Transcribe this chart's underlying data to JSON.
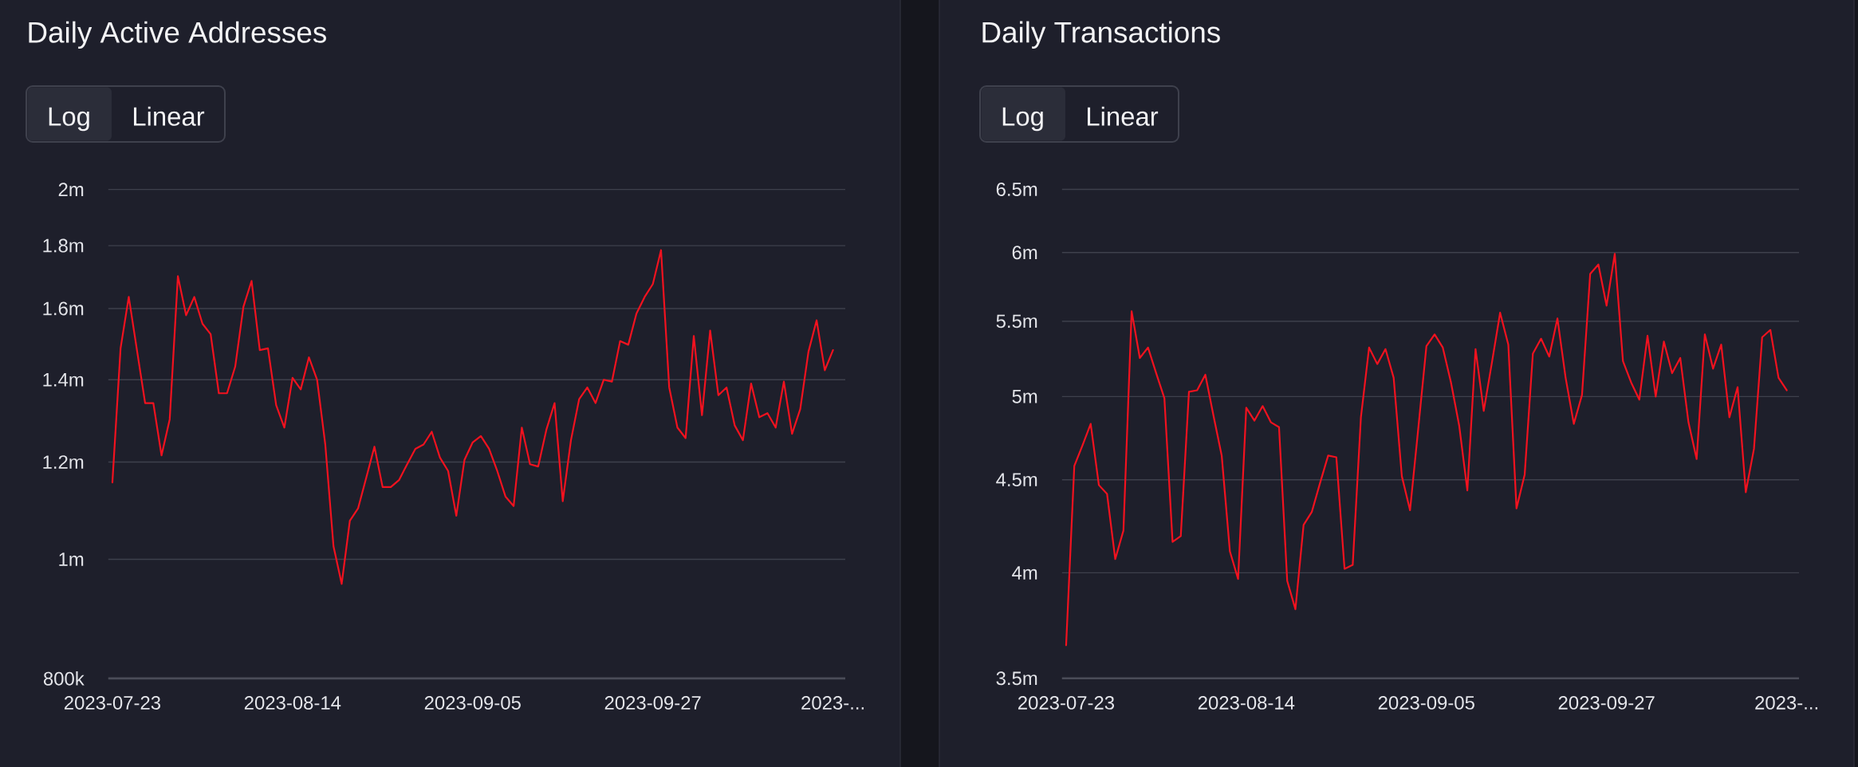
{
  "chart_data": [
    {
      "type": "line",
      "title": "Daily Active Addresses",
      "annotations": [
        "Log",
        "Linear"
      ],
      "x": [
        "2023-07-23",
        "2023-07-24",
        "2023-07-25",
        "2023-07-26",
        "2023-07-27",
        "2023-07-28",
        "2023-07-29",
        "2023-07-30",
        "2023-07-31",
        "2023-08-01",
        "2023-08-02",
        "2023-08-03",
        "2023-08-04",
        "2023-08-05",
        "2023-08-06",
        "2023-08-07",
        "2023-08-08",
        "2023-08-09",
        "2023-08-10",
        "2023-08-11",
        "2023-08-12",
        "2023-08-13",
        "2023-08-14",
        "2023-08-15",
        "2023-08-16",
        "2023-08-17",
        "2023-08-18",
        "2023-08-19",
        "2023-08-20",
        "2023-08-21",
        "2023-08-22",
        "2023-08-23",
        "2023-08-24",
        "2023-08-25",
        "2023-08-26",
        "2023-08-27",
        "2023-08-28",
        "2023-08-29",
        "2023-08-30",
        "2023-08-31",
        "2023-09-01",
        "2023-09-02",
        "2023-09-03",
        "2023-09-04",
        "2023-09-05",
        "2023-09-06",
        "2023-09-07",
        "2023-09-08",
        "2023-09-09",
        "2023-09-10",
        "2023-09-11",
        "2023-09-12",
        "2023-09-13",
        "2023-09-14",
        "2023-09-15",
        "2023-09-16",
        "2023-09-17",
        "2023-09-18",
        "2023-09-19",
        "2023-09-20",
        "2023-09-21",
        "2023-09-22",
        "2023-09-23",
        "2023-09-24",
        "2023-09-25",
        "2023-09-26",
        "2023-09-27",
        "2023-09-28",
        "2023-09-29",
        "2023-09-30",
        "2023-10-01",
        "2023-10-02",
        "2023-10-03",
        "2023-10-04",
        "2023-10-05",
        "2023-10-06",
        "2023-10-07",
        "2023-10-08",
        "2023-10-09",
        "2023-10-10",
        "2023-10-11",
        "2023-10-12",
        "2023-10-13",
        "2023-10-14",
        "2023-10-15",
        "2023-10-16",
        "2023-10-17",
        "2023-10-18",
        "2023-10-19"
      ],
      "values": [
        1155000,
        1485000,
        1635000,
        1480000,
        1340000,
        1340000,
        1215000,
        1300000,
        1700000,
        1580000,
        1635000,
        1555000,
        1525000,
        1365000,
        1365000,
        1435000,
        1605000,
        1685000,
        1480000,
        1485000,
        1335000,
        1280000,
        1405000,
        1375000,
        1460000,
        1400000,
        1240000,
        1025000,
        955000,
        1075000,
        1100000,
        1165000,
        1235000,
        1145000,
        1145000,
        1160000,
        1195000,
        1230000,
        1240000,
        1270000,
        1210000,
        1180000,
        1085000,
        1205000,
        1245000,
        1260000,
        1230000,
        1180000,
        1125000,
        1105000,
        1280000,
        1195000,
        1190000,
        1275000,
        1340000,
        1115000,
        1250000,
        1350000,
        1380000,
        1340000,
        1400000,
        1395000,
        1505000,
        1495000,
        1585000,
        1635000,
        1675000,
        1785000,
        1380000,
        1280000,
        1255000,
        1520000,
        1310000,
        1535000,
        1360000,
        1380000,
        1285000,
        1250000,
        1390000,
        1305000,
        1315000,
        1280000,
        1395000,
        1265000,
        1325000,
        1475000,
        1565000,
        1425000,
        1480000
      ],
      "color": "#f2121f",
      "log": "y",
      "grid": "y",
      "xlim": [
        "2023-07-22T12:00",
        "2023-10-20T12:00"
      ],
      "xticks": [
        "2023-07-23",
        "2023-08-14",
        "2023-09-05",
        "2023-09-27",
        {
          "value": "2023-10-19",
          "label": "2023-..."
        }
      ],
      "ylim": [
        800000,
        2000000
      ],
      "yticks": [
        {
          "value": 800000,
          "label": "800k"
        },
        {
          "value": 1000000,
          "label": "1m"
        },
        {
          "value": 1200000,
          "label": "1.2m"
        },
        {
          "value": 1400000,
          "label": "1.4m"
        },
        {
          "value": 1600000,
          "label": "1.6m"
        },
        {
          "value": 1800000,
          "label": "1.8m"
        },
        {
          "value": 2000000,
          "label": "2m"
        }
      ]
    },
    {
      "type": "line",
      "title": "Daily Transactions",
      "annotations": [
        "Log",
        "Linear"
      ],
      "x": [
        "2023-07-23",
        "2023-07-24",
        "2023-07-25",
        "2023-07-26",
        "2023-07-27",
        "2023-07-28",
        "2023-07-29",
        "2023-07-30",
        "2023-07-31",
        "2023-08-01",
        "2023-08-02",
        "2023-08-03",
        "2023-08-04",
        "2023-08-05",
        "2023-08-06",
        "2023-08-07",
        "2023-08-08",
        "2023-08-09",
        "2023-08-10",
        "2023-08-11",
        "2023-08-12",
        "2023-08-13",
        "2023-08-14",
        "2023-08-15",
        "2023-08-16",
        "2023-08-17",
        "2023-08-18",
        "2023-08-19",
        "2023-08-20",
        "2023-08-21",
        "2023-08-22",
        "2023-08-23",
        "2023-08-24",
        "2023-08-25",
        "2023-08-26",
        "2023-08-27",
        "2023-08-28",
        "2023-08-29",
        "2023-08-30",
        "2023-08-31",
        "2023-09-01",
        "2023-09-02",
        "2023-09-03",
        "2023-09-04",
        "2023-09-05",
        "2023-09-06",
        "2023-09-07",
        "2023-09-08",
        "2023-09-09",
        "2023-09-10",
        "2023-09-11",
        "2023-09-12",
        "2023-09-13",
        "2023-09-14",
        "2023-09-15",
        "2023-09-16",
        "2023-09-17",
        "2023-09-18",
        "2023-09-19",
        "2023-09-20",
        "2023-09-21",
        "2023-09-22",
        "2023-09-23",
        "2023-09-24",
        "2023-09-25",
        "2023-09-26",
        "2023-09-27",
        "2023-09-28",
        "2023-09-29",
        "2023-09-30",
        "2023-10-01",
        "2023-10-02",
        "2023-10-03",
        "2023-10-04",
        "2023-10-05",
        "2023-10-06",
        "2023-10-07",
        "2023-10-08",
        "2023-10-09",
        "2023-10-10",
        "2023-10-11",
        "2023-10-12",
        "2023-10-13",
        "2023-10-14",
        "2023-10-15",
        "2023-10-16",
        "2023-10-17",
        "2023-10-18",
        "2023-10-19"
      ],
      "values": [
        3650000,
        4580000,
        4700000,
        4830000,
        4470000,
        4420000,
        4070000,
        4220000,
        5570000,
        5250000,
        5320000,
        5150000,
        4990000,
        4160000,
        4190000,
        5030000,
        5040000,
        5140000,
        4880000,
        4640000,
        4110000,
        3970000,
        4930000,
        4850000,
        4940000,
        4840000,
        4810000,
        3960000,
        3820000,
        4250000,
        4320000,
        4480000,
        4640000,
        4630000,
        4020000,
        4040000,
        4870000,
        5320000,
        5210000,
        5310000,
        5120000,
        4520000,
        4330000,
        4800000,
        5330000,
        5410000,
        5320000,
        5090000,
        4820000,
        4440000,
        5310000,
        4910000,
        5220000,
        5560000,
        5340000,
        4340000,
        4530000,
        5280000,
        5380000,
        5260000,
        5520000,
        5120000,
        4830000,
        5010000,
        5840000,
        5910000,
        5610000,
        5990000,
        5230000,
        5090000,
        4980000,
        5400000,
        5000000,
        5360000,
        5150000,
        5250000,
        4840000,
        4620000,
        5410000,
        5180000,
        5340000,
        4870000,
        5060000,
        4430000,
        4680000,
        5390000,
        5440000,
        5120000,
        5040000
      ],
      "color": "#f2121f",
      "log": "y",
      "grid": "y",
      "xlim": [
        "2023-07-22T12:00",
        "2023-10-20T12:00"
      ],
      "xticks": [
        "2023-07-23",
        "2023-08-14",
        "2023-09-05",
        "2023-09-27",
        {
          "value": "2023-10-19",
          "label": "2023-..."
        }
      ],
      "ylim": [
        3500000,
        6500000
      ],
      "yticks": [
        {
          "value": 3500000,
          "label": "3.5m"
        },
        {
          "value": 4000000,
          "label": "4m"
        },
        {
          "value": 4500000,
          "label": "4.5m"
        },
        {
          "value": 5000000,
          "label": "5m"
        },
        {
          "value": 5500000,
          "label": "5.5m"
        },
        {
          "value": 6000000,
          "label": "6m"
        },
        {
          "value": 6500000,
          "label": "6.5m"
        }
      ]
    }
  ]
}
